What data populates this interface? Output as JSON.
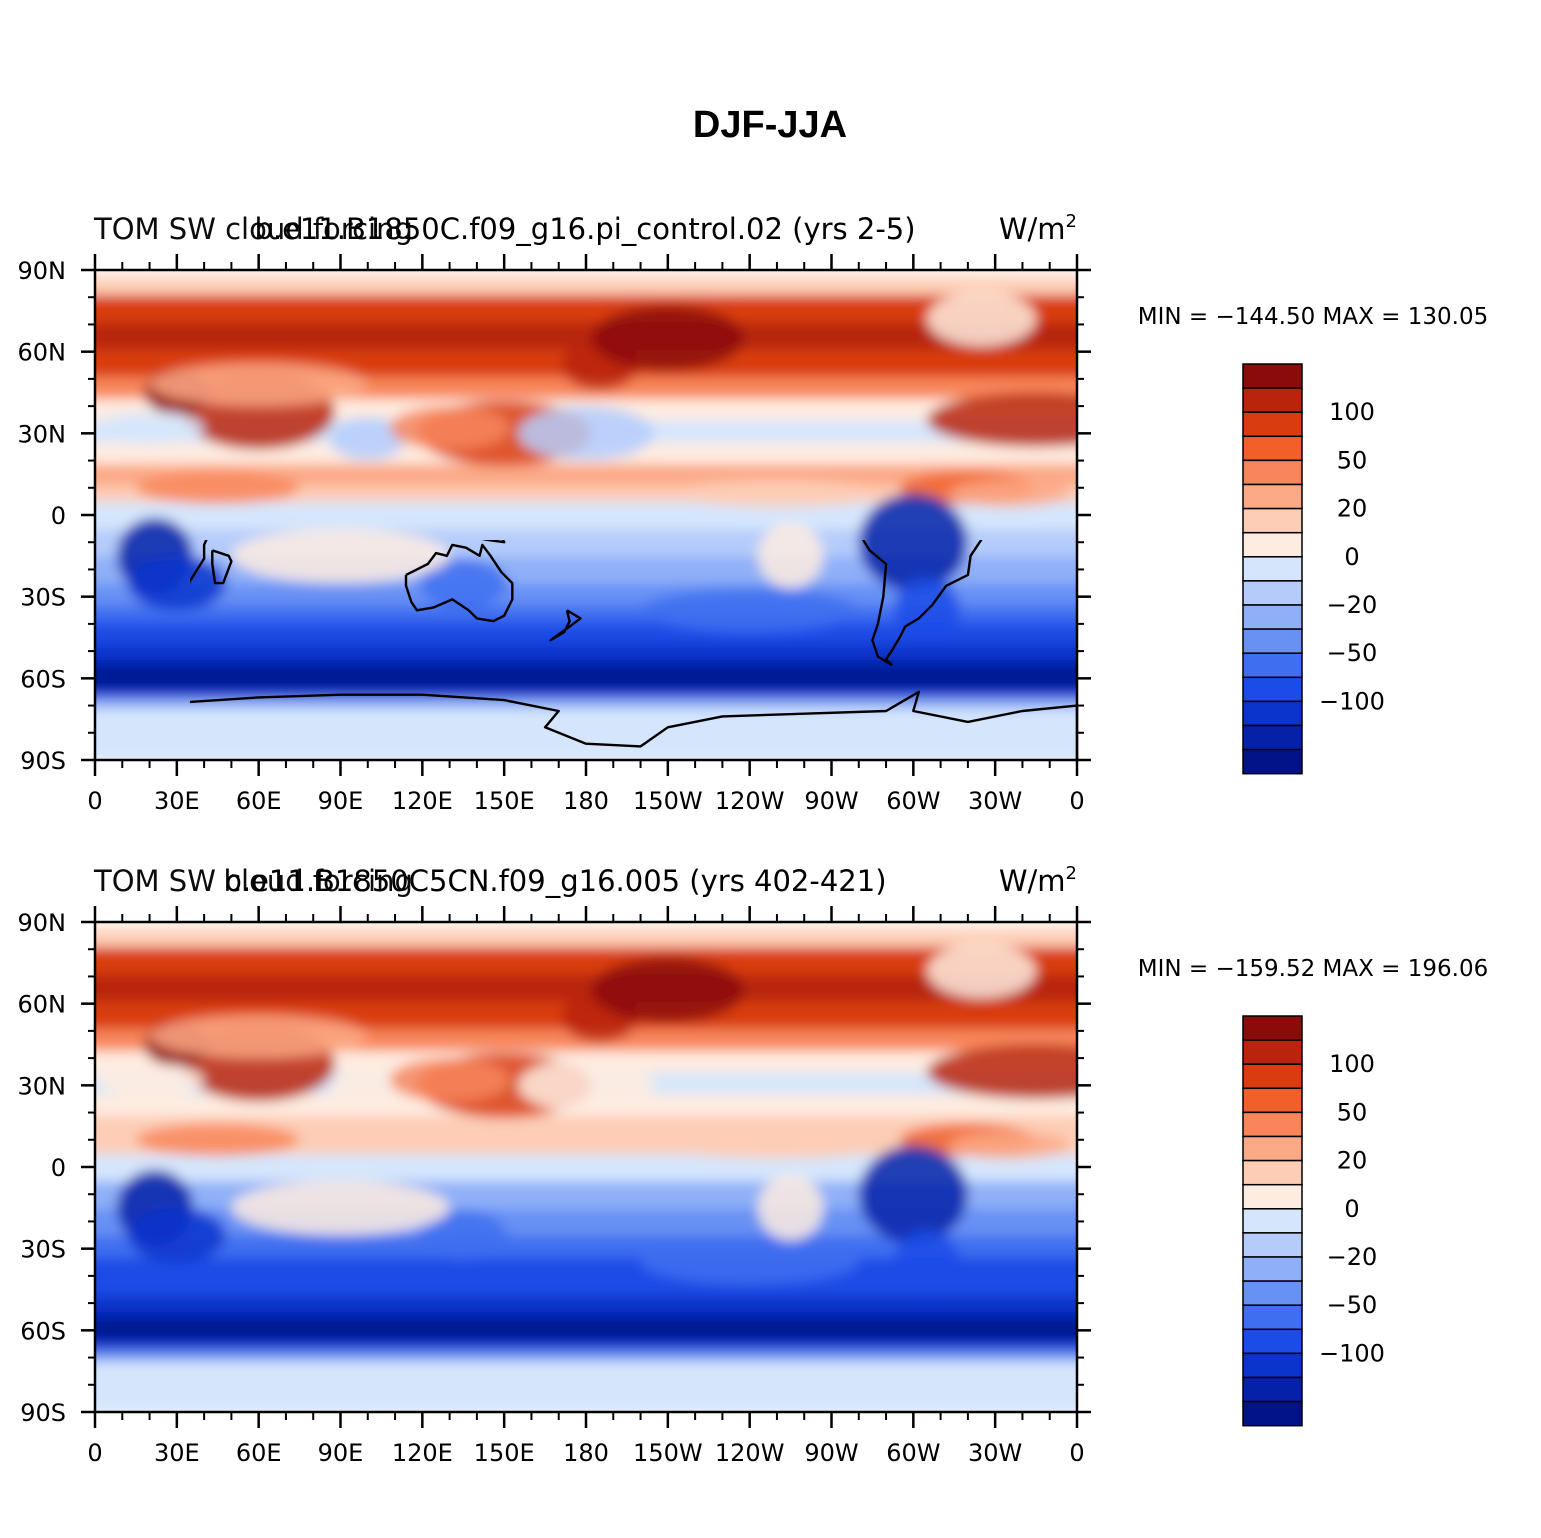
{
  "figure": {
    "title": "DJF-JJA"
  },
  "panels": [
    {
      "left_string": "TOM SW cloud forcing",
      "center_string": "b.e11.B1850C.f09_g16.pi_control.02 (yrs 2-5)",
      "units": "W/m",
      "units_exp": "2",
      "min_max": "MIN = −144.50  MAX = 130.05",
      "stats": {
        "min": -144.5,
        "max": 130.05
      }
    },
    {
      "left_string": "TOM SW cloud forcing",
      "center_string": "b.e11.B1850C5CN.f09_g16.005 (yrs 402-421)",
      "units": "W/m",
      "units_exp": "2",
      "min_max": "MIN = −159.52  MAX = 196.06",
      "stats": {
        "min": -159.52,
        "max": 196.06
      }
    }
  ],
  "lat_labels": [
    "90N",
    "60N",
    "30N",
    "0",
    "30S",
    "60S",
    "90S"
  ],
  "lon_labels": [
    "0",
    "30E",
    "60E",
    "90E",
    "120E",
    "150E",
    "180",
    "150W",
    "120W",
    "90W",
    "60W",
    "30W",
    "0"
  ],
  "colorbar": {
    "labels": [
      "100",
      "50",
      "20",
      "0",
      "−20",
      "−50",
      "−100"
    ],
    "colors": [
      "#8b0a0a",
      "#b8250c",
      "#d93c0e",
      "#f0602a",
      "#f8865a",
      "#fba986",
      "#fdcdb5",
      "#feece0",
      "#d5e6fc",
      "#b5ccfb",
      "#8fb0f8",
      "#6891f4",
      "#3f6ef0",
      "#1c4ce6",
      "#0b34cc",
      "#0521a8",
      "#02138a"
    ]
  },
  "map": {
    "land_outline_color": "#000000"
  }
}
